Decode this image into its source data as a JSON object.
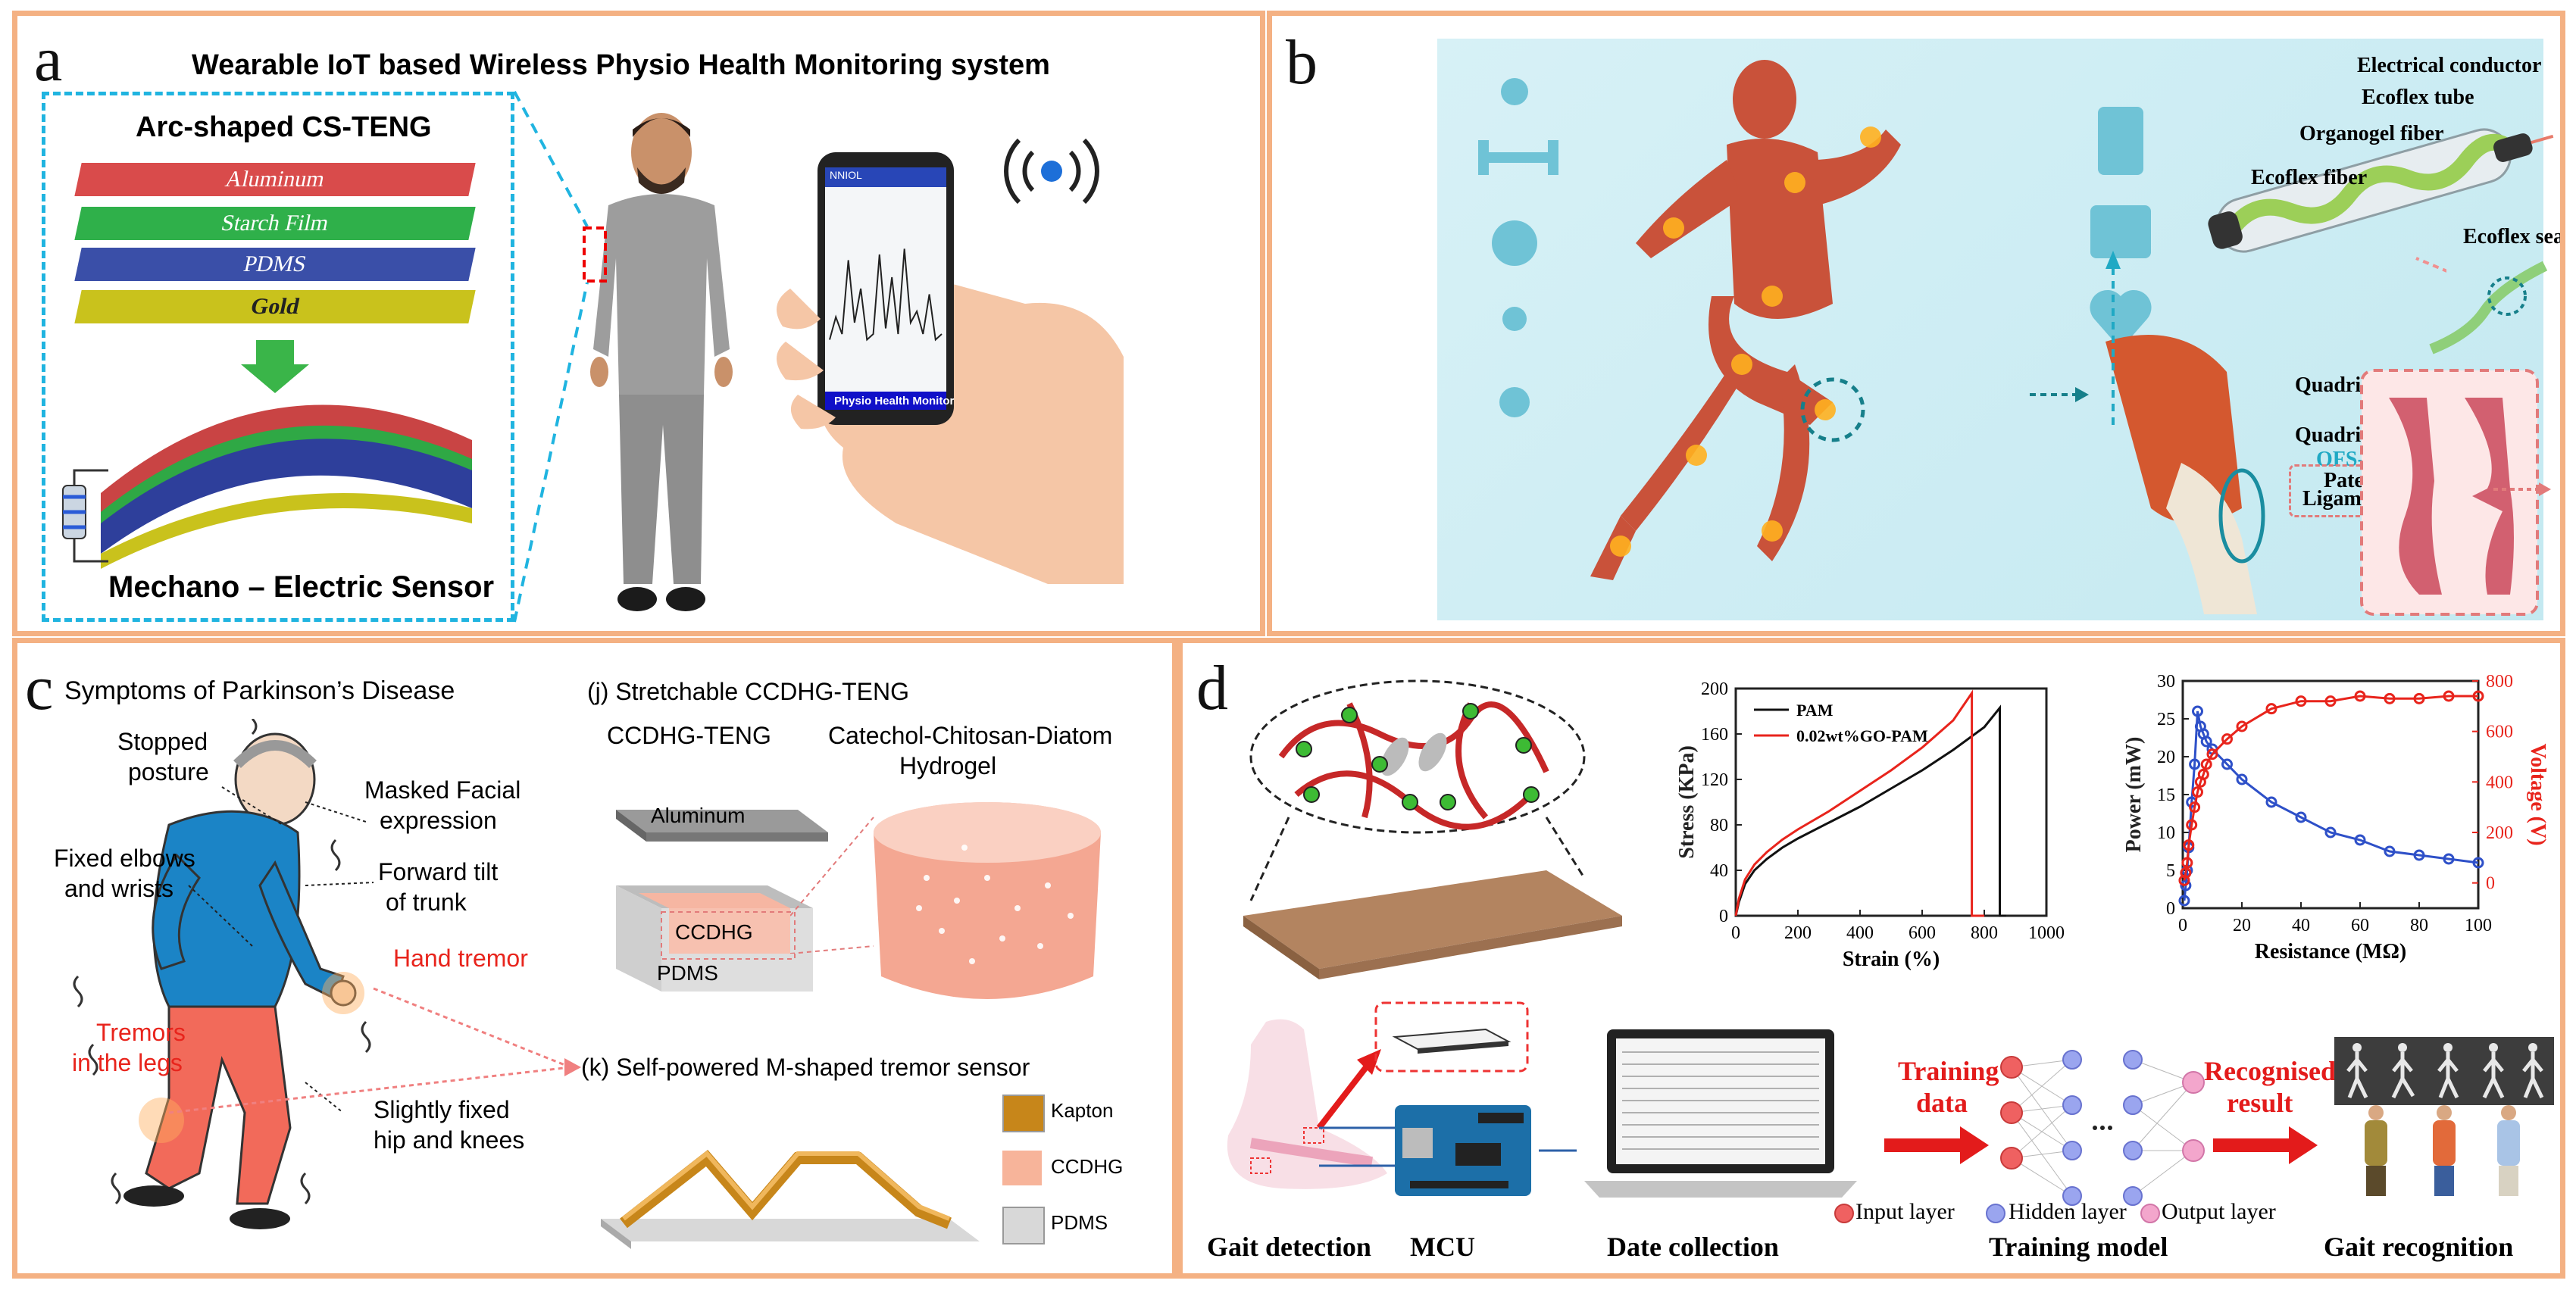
{
  "panels": {
    "a": {
      "label": "a",
      "title": "Wearable IoT based Wireless Physio Health Monitoring system",
      "device_title": "Arc-shaped CS-TENG",
      "layers": [
        "Aluminum",
        "Starch Film",
        "PDMS",
        "Gold"
      ],
      "sensor_caption": "Mechano – Electric Sensor",
      "phone": {
        "header": "NNIOL",
        "footer": "Physio Health Monitor",
        "graph": [
          0.15,
          0.35,
          0.2,
          0.85,
          0.3,
          0.6,
          0.15,
          0.2,
          0.9,
          0.25,
          0.7,
          0.2,
          0.95,
          0.3,
          0.4,
          0.2,
          0.55,
          0.15,
          0.2
        ]
      }
    },
    "b": {
      "label": "b",
      "fiber_labels": [
        "Electrical conductor",
        "Ecoflex tube",
        "Organogel fiber",
        "Ecoflex fiber",
        "Ecoflex seal"
      ],
      "knee_labels": [
        "Quadriceps femoris",
        "Quadriceps tendon",
        "OFS-TENG",
        "Patellar tendon",
        "Ligament"
      ]
    },
    "c": {
      "label": "c",
      "title": "Symptoms of Parkinson’s Disease",
      "symptoms": {
        "stopped": [
          "Stopped",
          "posture"
        ],
        "masked": [
          "Masked Facial",
          "expression"
        ],
        "elbows": [
          "Fixed elbows",
          "and wrists"
        ],
        "trunk": [
          "Forward tilt",
          "of trunk"
        ],
        "hand": "Hand tremor",
        "legs": [
          "Tremors",
          "in the legs"
        ],
        "hip": [
          "Slightly fixed",
          "hip and knees"
        ]
      },
      "teng_title": "(j) Stretchable CCDHG-TENG",
      "teng_sub": "CCDHG-TENG",
      "hydrogel": [
        "Catechol-Chitosan-Diatom",
        "Hydrogel"
      ],
      "box_labels": [
        "Aluminum",
        "CCDHG",
        "PDMS"
      ],
      "sensor_title": "(k) Self-powered M-shaped tremor sensor",
      "legend": [
        "Kapton",
        "CCDHG",
        "PDMS"
      ]
    },
    "d": {
      "label": "d",
      "flow_labels": [
        "Gait detection",
        "MCU",
        "Date collection",
        "Training model",
        "Gait recognition"
      ],
      "arrow_labels": [
        [
          "Training",
          "data"
        ],
        [
          "Recognised",
          "result"
        ]
      ],
      "nn_legend": [
        "Input layer",
        "Hidden layer",
        "Output layer"
      ]
    }
  },
  "colors": {
    "border": "#f4b183",
    "accent_red": "#e8241c",
    "accent_blue": "#2e50c8",
    "cyan": "#20b4e0"
  },
  "chart_data": [
    {
      "type": "line",
      "xlabel": "Strain (%)",
      "ylabel": "Stress (KPa)",
      "xlim": [
        0,
        1000
      ],
      "ylim": [
        0,
        200
      ],
      "xticks": [
        0,
        200,
        400,
        600,
        800,
        1000
      ],
      "yticks": [
        0,
        40,
        80,
        120,
        160,
        200
      ],
      "legend_position": "top-left",
      "series": [
        {
          "name": "PAM",
          "color": "#111111",
          "x": [
            0,
            10,
            30,
            60,
            100,
            150,
            200,
            300,
            400,
            500,
            600,
            700,
            800,
            850,
            850,
            870
          ],
          "y": [
            0,
            12,
            28,
            40,
            50,
            60,
            68,
            82,
            96,
            112,
            128,
            146,
            166,
            183,
            0,
            0
          ]
        },
        {
          "name": "0.02wt%GO-PAM",
          "color": "#e8241c",
          "x": [
            0,
            10,
            30,
            60,
            100,
            150,
            200,
            300,
            400,
            500,
            600,
            700,
            760,
            760,
            800
          ],
          "y": [
            0,
            15,
            32,
            45,
            56,
            67,
            76,
            92,
            110,
            128,
            148,
            172,
            196,
            0,
            0
          ]
        }
      ]
    },
    {
      "type": "line",
      "xlabel": "Resistance (MΩ)",
      "ylabel": "Power (mW)",
      "ylabel_right": "Voltage (V)",
      "xlim": [
        0,
        100
      ],
      "ylim": [
        0,
        30
      ],
      "ylim_right": [
        -100,
        800
      ],
      "xticks": [
        0,
        20,
        40,
        60,
        80,
        100
      ],
      "yticks": [
        0,
        5,
        10,
        15,
        20,
        25,
        30
      ],
      "yticks_right": [
        0,
        200,
        400,
        600,
        800
      ],
      "series": [
        {
          "name": "Power",
          "axis": "left",
          "color": "#2e50c8",
          "x": [
            0.5,
            1,
            1.5,
            2,
            3,
            4,
            5,
            6,
            7,
            8,
            10,
            15,
            20,
            30,
            40,
            50,
            60,
            70,
            80,
            90,
            100
          ],
          "y": [
            1,
            3,
            5,
            8,
            14,
            19,
            26,
            24,
            23,
            22,
            21,
            19,
            17,
            14,
            12,
            10,
            9,
            7.5,
            7,
            6.5,
            6
          ]
        },
        {
          "name": "Voltage",
          "axis": "right",
          "color": "#e8241c",
          "x": [
            0.5,
            1,
            1.5,
            2,
            3,
            4,
            5,
            6,
            7,
            8,
            10,
            15,
            20,
            30,
            40,
            50,
            60,
            70,
            80,
            90,
            100
          ],
          "y": [
            10,
            40,
            80,
            150,
            230,
            300,
            360,
            400,
            430,
            470,
            510,
            570,
            620,
            690,
            720,
            720,
            740,
            730,
            730,
            740,
            740
          ]
        }
      ]
    }
  ]
}
